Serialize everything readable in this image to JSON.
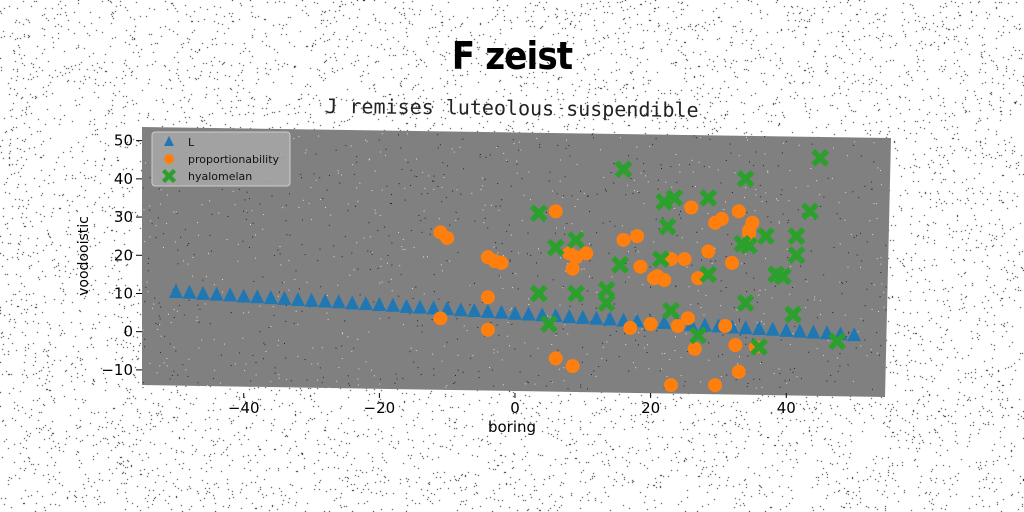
{
  "chart_data": {
    "type": "scatter",
    "title": "F zeist",
    "subtitle": "J remises luteolous suspendible",
    "xlabel": "boring",
    "ylabel": "voodooistic",
    "xlim": [
      -55,
      55
    ],
    "ylim": [
      -15,
      52
    ],
    "xticks": [
      -40,
      -20,
      0,
      20,
      40
    ],
    "yticks": [
      -10,
      0,
      10,
      20,
      30,
      40,
      50
    ],
    "grid": false,
    "legend_position": "top-left",
    "plot_background": "#808080",
    "series": [
      {
        "name": "L",
        "marker": "triangle",
        "color": "#1f77b4",
        "points": [
          [
            -50,
            10.4
          ],
          [
            -48,
            10.2
          ],
          [
            -46,
            9.9
          ],
          [
            -44,
            9.7
          ],
          [
            -42,
            9.5
          ],
          [
            -40,
            9.2
          ],
          [
            -38,
            9.0
          ],
          [
            -36,
            8.8
          ],
          [
            -34,
            8.6
          ],
          [
            -32,
            8.3
          ],
          [
            -30,
            8.1
          ],
          [
            -28,
            7.9
          ],
          [
            -26,
            7.7
          ],
          [
            -24,
            7.4
          ],
          [
            -22,
            7.2
          ],
          [
            -20,
            7.0
          ],
          [
            -18,
            6.8
          ],
          [
            -16,
            6.5
          ],
          [
            -14,
            6.3
          ],
          [
            -12,
            6.1
          ],
          [
            -10,
            5.9
          ],
          [
            -8,
            5.6
          ],
          [
            -6,
            5.4
          ],
          [
            -4,
            5.2
          ],
          [
            -2,
            5.0
          ],
          [
            0,
            4.7
          ],
          [
            2,
            4.5
          ],
          [
            4,
            4.3
          ],
          [
            6,
            4.1
          ],
          [
            8,
            3.8
          ],
          [
            10,
            3.6
          ],
          [
            12,
            3.4
          ],
          [
            14,
            3.2
          ],
          [
            16,
            2.9
          ],
          [
            18,
            2.7
          ],
          [
            20,
            2.5
          ],
          [
            22,
            2.3
          ],
          [
            24,
            2.0
          ],
          [
            26,
            1.8
          ],
          [
            28,
            1.6
          ],
          [
            30,
            1.4
          ],
          [
            32,
            1.1
          ],
          [
            34,
            0.9
          ],
          [
            36,
            0.7
          ],
          [
            38,
            0.5
          ],
          [
            40,
            0.2
          ],
          [
            42,
            0.0
          ],
          [
            44,
            -0.2
          ],
          [
            46,
            -0.4
          ],
          [
            48,
            -0.7
          ],
          [
            50,
            -0.9
          ]
        ]
      },
      {
        "name": "proportionability",
        "marker": "circle",
        "color": "#ff7f0e",
        "points": [
          [
            -11,
            26
          ],
          [
            -10,
            24.5
          ],
          [
            -4,
            19.5
          ],
          [
            -3,
            18.5
          ],
          [
            -2,
            18
          ],
          [
            -4,
            9
          ],
          [
            -11,
            3.5
          ],
          [
            -4,
            0.5
          ],
          [
            6,
            31.5
          ],
          [
            8,
            20.5
          ],
          [
            8.5,
            16.5
          ],
          [
            9,
            19.5
          ],
          [
            10.5,
            20.5
          ],
          [
            16,
            24
          ],
          [
            18,
            25
          ],
          [
            18.5,
            17
          ],
          [
            20.5,
            14
          ],
          [
            21,
            14.5
          ],
          [
            22,
            13.5
          ],
          [
            23,
            19
          ],
          [
            25,
            19
          ],
          [
            26,
            32.5
          ],
          [
            27,
            14
          ],
          [
            28.5,
            21
          ],
          [
            29.5,
            28.5
          ],
          [
            30.5,
            29.5
          ],
          [
            32,
            18
          ],
          [
            33,
            31.5
          ],
          [
            34.5,
            25.5
          ],
          [
            35,
            28.5
          ],
          [
            34.5,
            26.5
          ],
          [
            17,
            1
          ],
          [
            20,
            2
          ],
          [
            24,
            1.5
          ],
          [
            25.5,
            3.5
          ],
          [
            31,
            1.5
          ],
          [
            26.5,
            -4.5
          ],
          [
            32.5,
            -3.5
          ],
          [
            35.5,
            -4
          ],
          [
            33,
            -10.5
          ],
          [
            29.5,
            -14
          ],
          [
            23,
            -14
          ],
          [
            6,
            -7
          ],
          [
            8.5,
            -9
          ]
        ]
      },
      {
        "name": "hyalomelan",
        "marker": "x",
        "color": "#2ca02c",
        "points": [
          [
            16,
            42.5
          ],
          [
            22,
            34
          ],
          [
            23.5,
            35
          ],
          [
            28.5,
            35
          ],
          [
            34,
            40
          ],
          [
            45,
            45.5
          ],
          [
            3.5,
            31
          ],
          [
            37,
            25
          ],
          [
            6,
            22
          ],
          [
            9,
            24
          ],
          [
            22.5,
            27.5
          ],
          [
            33.5,
            23
          ],
          [
            34.5,
            22.5
          ],
          [
            41.5,
            20
          ],
          [
            41.5,
            25
          ],
          [
            43.5,
            31.5
          ],
          [
            15.5,
            17.5
          ],
          [
            21.5,
            19
          ],
          [
            28.5,
            15
          ],
          [
            38.5,
            15
          ],
          [
            39.5,
            14.5
          ],
          [
            13.5,
            11
          ],
          [
            13.5,
            7.5
          ],
          [
            3.5,
            10
          ],
          [
            9,
            10
          ],
          [
            23,
            5.5
          ],
          [
            34,
            7.5
          ],
          [
            41,
            4.5
          ],
          [
            5,
            2
          ],
          [
            27,
            -1
          ],
          [
            36,
            -4
          ],
          [
            47.5,
            -2.5
          ]
        ]
      }
    ]
  }
}
